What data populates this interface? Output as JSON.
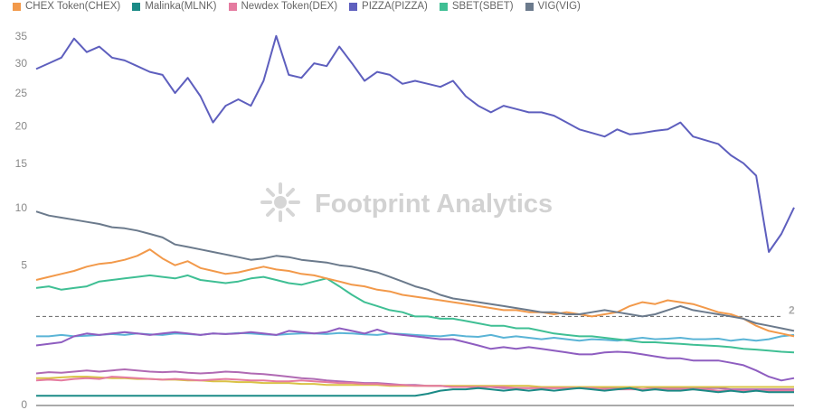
{
  "legend": [
    {
      "name": "CHEX Token(CHEX)",
      "color": "#f2994a"
    },
    {
      "name": "Malinka(MLNK)",
      "color": "#1a8a86"
    },
    {
      "name": "Newdex Token(DEX)",
      "color": "#e57ba0"
    },
    {
      "name": "PIZZA(PIZZA)",
      "color": "#5e5fbe"
    },
    {
      "name": "SBET(SBET)",
      "color": "#3fbf94"
    },
    {
      "name": "VIG(VIG)",
      "color": "#6b7a8c"
    }
  ],
  "watermark": "Footprint Analytics",
  "chart_data": {
    "type": "line",
    "y_scale": "sqrt",
    "ylim": [
      0,
      36
    ],
    "y_ticks": [
      0,
      5,
      10,
      15,
      20,
      25,
      30,
      35
    ],
    "reference_line": {
      "value": 2,
      "label": "2"
    },
    "x_points": 61,
    "grid": false,
    "legend_position": "top-left",
    "series": [
      {
        "name": "PIZZA(PIZZA)",
        "color": "#5e5fbe",
        "values": [
          29.0,
          30.0,
          31.0,
          34.5,
          32.0,
          33.0,
          31.0,
          30.5,
          29.5,
          28.5,
          28.0,
          25.0,
          27.5,
          24.5,
          20.5,
          23.0,
          24.0,
          23.0,
          27.0,
          35.0,
          28.0,
          27.5,
          30.0,
          29.5,
          33.0,
          30.0,
          27.0,
          28.5,
          28.0,
          26.5,
          27.0,
          26.5,
          26.0,
          27.0,
          24.5,
          23.0,
          22.0,
          23.0,
          22.5,
          22.0,
          22.0,
          21.5,
          20.5,
          19.5,
          19.0,
          18.5,
          19.5,
          18.8,
          19.0,
          19.3,
          19.5,
          20.5,
          18.5,
          18.0,
          17.5,
          16.0,
          15.0,
          13.5,
          6.0,
          7.5,
          10.0
        ]
      },
      {
        "name": "VIG(VIG)",
        "color": "#6b7a8c",
        "values": [
          9.6,
          9.2,
          9.0,
          8.8,
          8.6,
          8.4,
          8.1,
          8.0,
          7.8,
          7.5,
          7.2,
          6.6,
          6.4,
          6.2,
          6.0,
          5.8,
          5.6,
          5.4,
          5.5,
          5.7,
          5.6,
          5.4,
          5.3,
          5.2,
          5.0,
          4.9,
          4.7,
          4.5,
          4.2,
          3.9,
          3.6,
          3.4,
          3.1,
          2.9,
          2.8,
          2.7,
          2.6,
          2.5,
          2.4,
          2.3,
          2.2,
          2.2,
          2.1,
          2.1,
          2.2,
          2.3,
          2.2,
          2.1,
          2.0,
          2.1,
          2.3,
          2.5,
          2.3,
          2.2,
          2.1,
          2.0,
          1.9,
          1.7,
          1.6,
          1.5,
          1.4
        ]
      },
      {
        "name": "CHEX Token(CHEX)",
        "color": "#f2994a",
        "values": [
          4.0,
          4.2,
          4.4,
          4.6,
          4.9,
          5.1,
          5.2,
          5.4,
          5.7,
          6.2,
          5.5,
          5.0,
          5.3,
          4.8,
          4.6,
          4.4,
          4.5,
          4.7,
          4.9,
          4.7,
          4.6,
          4.4,
          4.3,
          4.1,
          3.9,
          3.7,
          3.6,
          3.4,
          3.3,
          3.1,
          3.0,
          2.9,
          2.8,
          2.7,
          2.6,
          2.5,
          2.4,
          2.3,
          2.3,
          2.2,
          2.2,
          2.1,
          2.2,
          2.1,
          2.0,
          2.1,
          2.2,
          2.5,
          2.7,
          2.6,
          2.8,
          2.7,
          2.6,
          2.4,
          2.2,
          2.1,
          1.9,
          1.6,
          1.4,
          1.3,
          1.2
        ]
      },
      {
        "name": "SBET(SBET)",
        "color": "#3fbf94",
        "values": [
          3.5,
          3.6,
          3.4,
          3.5,
          3.6,
          3.9,
          4.0,
          4.1,
          4.2,
          4.3,
          4.2,
          4.1,
          4.3,
          4.0,
          3.9,
          3.8,
          3.9,
          4.1,
          4.2,
          4.0,
          3.8,
          3.7,
          3.9,
          4.1,
          3.6,
          3.1,
          2.7,
          2.5,
          2.3,
          2.2,
          2.0,
          2.0,
          1.9,
          1.9,
          1.8,
          1.7,
          1.6,
          1.6,
          1.5,
          1.5,
          1.4,
          1.3,
          1.25,
          1.2,
          1.2,
          1.15,
          1.1,
          1.05,
          1.0,
          1.0,
          0.97,
          0.95,
          0.92,
          0.9,
          0.88,
          0.85,
          0.8,
          0.78,
          0.75,
          0.72,
          0.7
        ]
      },
      {
        "name": "Malinka(MLNK)",
        "color": "#1a8a86",
        "values": [
          0.02,
          0.02,
          0.02,
          0.02,
          0.02,
          0.02,
          0.02,
          0.02,
          0.02,
          0.02,
          0.02,
          0.02,
          0.02,
          0.02,
          0.02,
          0.02,
          0.02,
          0.02,
          0.02,
          0.02,
          0.02,
          0.02,
          0.02,
          0.02,
          0.02,
          0.02,
          0.02,
          0.02,
          0.02,
          0.02,
          0.02,
          0.03,
          0.05,
          0.06,
          0.06,
          0.07,
          0.06,
          0.05,
          0.06,
          0.05,
          0.06,
          0.05,
          0.06,
          0.07,
          0.06,
          0.05,
          0.06,
          0.07,
          0.05,
          0.06,
          0.05,
          0.05,
          0.06,
          0.05,
          0.04,
          0.05,
          0.04,
          0.05,
          0.04,
          0.04,
          0.04
        ]
      },
      {
        "name": "Newdex Token(DEX)",
        "color": "#e57ba0",
        "values": [
          0.15,
          0.16,
          0.15,
          0.17,
          0.18,
          0.17,
          0.2,
          0.19,
          0.18,
          0.17,
          0.16,
          0.17,
          0.16,
          0.15,
          0.16,
          0.17,
          0.16,
          0.15,
          0.15,
          0.14,
          0.14,
          0.15,
          0.14,
          0.13,
          0.12,
          0.12,
          0.11,
          0.11,
          0.1,
          0.1,
          0.09,
          0.09,
          0.09,
          0.08,
          0.08,
          0.08,
          0.08,
          0.08,
          0.07,
          0.07,
          0.07,
          0.07,
          0.07,
          0.07,
          0.07,
          0.06,
          0.06,
          0.06,
          0.06,
          0.06,
          0.06,
          0.06,
          0.06,
          0.06,
          0.05,
          0.05,
          0.05,
          0.05,
          0.05,
          0.05,
          0.05
        ]
      }
    ],
    "extra_lines": [
      {
        "color": "#5ab4d6",
        "values": [
          1.2,
          1.2,
          1.25,
          1.2,
          1.22,
          1.25,
          1.28,
          1.25,
          1.3,
          1.27,
          1.25,
          1.3,
          1.28,
          1.25,
          1.3,
          1.28,
          1.32,
          1.3,
          1.27,
          1.25,
          1.28,
          1.3,
          1.3,
          1.28,
          1.32,
          1.3,
          1.27,
          1.25,
          1.3,
          1.28,
          1.25,
          1.22,
          1.2,
          1.25,
          1.2,
          1.18,
          1.25,
          1.15,
          1.2,
          1.15,
          1.1,
          1.15,
          1.1,
          1.05,
          1.1,
          1.08,
          1.05,
          1.1,
          1.15,
          1.1,
          1.12,
          1.15,
          1.1,
          1.1,
          1.12,
          1.05,
          1.1,
          1.05,
          1.1,
          1.2,
          1.25
        ]
      },
      {
        "color": "#8e5dc0",
        "values": [
          0.9,
          0.95,
          1.0,
          1.2,
          1.3,
          1.25,
          1.3,
          1.35,
          1.3,
          1.25,
          1.3,
          1.35,
          1.3,
          1.25,
          1.3,
          1.28,
          1.3,
          1.35,
          1.3,
          1.25,
          1.4,
          1.35,
          1.3,
          1.35,
          1.5,
          1.4,
          1.3,
          1.45,
          1.3,
          1.25,
          1.2,
          1.15,
          1.1,
          1.1,
          1.0,
          0.9,
          0.8,
          0.85,
          0.8,
          0.85,
          0.8,
          0.75,
          0.7,
          0.65,
          0.65,
          0.7,
          0.72,
          0.7,
          0.65,
          0.6,
          0.55,
          0.55,
          0.5,
          0.5,
          0.5,
          0.45,
          0.4,
          0.3,
          0.2,
          0.15,
          0.18
        ]
      },
      {
        "color": "#b06ab3",
        "values": [
          0.25,
          0.27,
          0.26,
          0.28,
          0.3,
          0.28,
          0.3,
          0.32,
          0.3,
          0.28,
          0.27,
          0.28,
          0.26,
          0.25,
          0.26,
          0.28,
          0.27,
          0.25,
          0.24,
          0.22,
          0.2,
          0.18,
          0.17,
          0.15,
          0.14,
          0.13,
          0.12,
          0.12,
          0.11,
          0.1,
          0.1,
          0.09,
          0.09,
          0.08,
          0.08,
          0.08,
          0.08,
          0.07,
          0.07,
          0.07,
          0.07,
          0.07,
          0.07,
          0.07,
          0.07,
          0.07,
          0.07,
          0.07,
          0.08,
          0.07,
          0.07,
          0.07,
          0.07,
          0.07,
          0.07,
          0.06,
          0.06,
          0.06,
          0.06,
          0.06,
          0.06
        ]
      },
      {
        "color": "#d9c244",
        "values": [
          0.18,
          0.18,
          0.19,
          0.2,
          0.2,
          0.19,
          0.18,
          0.18,
          0.17,
          0.17,
          0.16,
          0.16,
          0.15,
          0.15,
          0.14,
          0.14,
          0.13,
          0.13,
          0.12,
          0.12,
          0.12,
          0.11,
          0.11,
          0.1,
          0.1,
          0.1,
          0.1,
          0.1,
          0.09,
          0.09,
          0.09,
          0.09,
          0.09,
          0.09,
          0.09,
          0.09,
          0.09,
          0.09,
          0.09,
          0.09,
          0.08,
          0.08,
          0.08,
          0.08,
          0.08,
          0.08,
          0.08,
          0.08,
          0.08,
          0.08,
          0.08,
          0.08,
          0.08,
          0.08,
          0.08,
          0.08,
          0.08,
          0.08,
          0.08,
          0.08,
          0.08
        ]
      }
    ]
  }
}
